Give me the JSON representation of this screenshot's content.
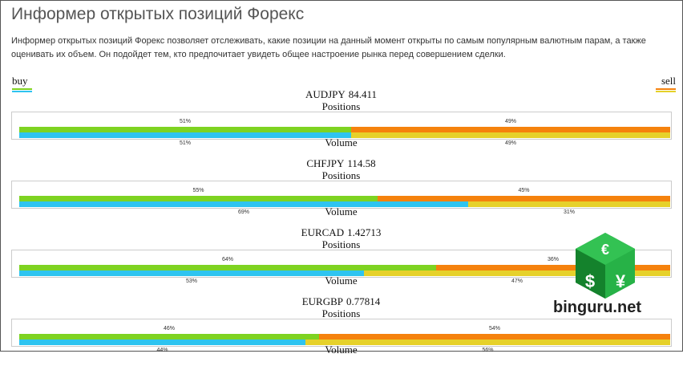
{
  "header": {
    "title": "Информер открытых позиций Форекс",
    "description": "Информер открытых позиций Форекс позволяет отслеживать, какие позиции на данный момент открыты по самым популярным валютным парам, а также оценивать их объем. Он подойдет тем, кто предпочитает увидеть общее настроение рынка перед совершением сделки."
  },
  "legend": {
    "buy": "buy",
    "sell": "sell"
  },
  "labels": {
    "positions": "Positions",
    "volume": "Volume"
  },
  "colors": {
    "buy_positions": "#7ed321",
    "buy_volume": "#2ec4f0",
    "sell_positions": "#f5820d",
    "sell_volume": "#e6d12a"
  },
  "pairs": [
    {
      "symbol": "AUDJPY",
      "rate": "84.411",
      "positions_buy": 51,
      "positions_sell": 49,
      "volume_buy": 51,
      "volume_sell": 49,
      "positions_buy_label": "51%",
      "positions_sell_label": "49%",
      "volume_buy_label": "51%",
      "volume_sell_label": "49%"
    },
    {
      "symbol": "CHFJPY",
      "rate": "114.58",
      "positions_buy": 55,
      "positions_sell": 45,
      "volume_buy": 69,
      "volume_sell": 31,
      "positions_buy_label": "55%",
      "positions_sell_label": "45%",
      "volume_buy_label": "69%",
      "volume_sell_label": "31%"
    },
    {
      "symbol": "EURCAD",
      "rate": "1.42713",
      "positions_buy": 64,
      "positions_sell": 36,
      "volume_buy": 53,
      "volume_sell": 47,
      "positions_buy_label": "64%",
      "positions_sell_label": "36%",
      "volume_buy_label": "53%",
      "volume_sell_label": "47%"
    },
    {
      "symbol": "EURGBP",
      "rate": "0.77814",
      "positions_buy": 46,
      "positions_sell": 54,
      "volume_buy": 44,
      "volume_sell": 56,
      "positions_buy_label": "46%",
      "positions_sell_label": "54%",
      "volume_buy_label": "44%",
      "volume_sell_label": "56%"
    }
  ],
  "watermark": {
    "brand": "binguru.net",
    "icon_symbols": [
      "€",
      "$",
      "¥"
    ]
  }
}
